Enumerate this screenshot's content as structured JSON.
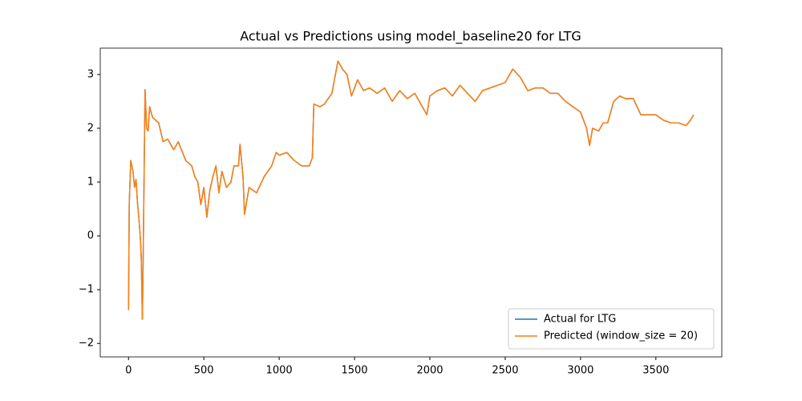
{
  "chart_data": {
    "type": "line",
    "title": "Actual vs Predictions using model_baseline20 for LTG",
    "x": [
      0,
      5,
      15,
      30,
      40,
      50,
      60,
      70,
      80,
      85,
      92,
      97,
      105,
      110,
      120,
      130,
      140,
      160,
      200,
      230,
      260,
      300,
      330,
      380,
      420,
      440,
      460,
      480,
      500,
      520,
      540,
      560,
      580,
      600,
      620,
      650,
      680,
      700,
      730,
      740,
      760,
      770,
      800,
      850,
      900,
      950,
      980,
      1000,
      1050,
      1100,
      1150,
      1200,
      1220,
      1230,
      1270,
      1300,
      1350,
      1390,
      1420,
      1450,
      1480,
      1520,
      1560,
      1600,
      1650,
      1700,
      1750,
      1800,
      1850,
      1900,
      1950,
      1980,
      2000,
      2050,
      2100,
      2150,
      2200,
      2250,
      2300,
      2350,
      2400,
      2450,
      2500,
      2550,
      2600,
      2650,
      2700,
      2750,
      2800,
      2850,
      2900,
      2950,
      3000,
      3040,
      3060,
      3080,
      3120,
      3150,
      3180,
      3220,
      3260,
      3300,
      3350,
      3400,
      3450,
      3500,
      3550,
      3600,
      3650,
      3700,
      3730,
      3750
    ],
    "series": [
      {
        "name": "Actual for LTG",
        "color": "#1f77b4",
        "values": [
          -1.38,
          0.6,
          1.4,
          1.2,
          0.9,
          1.05,
          0.6,
          0.3,
          -0.1,
          -0.45,
          -1.55,
          -0.5,
          1.5,
          2.72,
          2.0,
          1.95,
          2.4,
          2.2,
          2.1,
          1.75,
          1.8,
          1.6,
          1.75,
          1.4,
          1.3,
          1.1,
          1.0,
          0.58,
          0.9,
          0.35,
          0.85,
          1.1,
          1.3,
          0.8,
          1.2,
          0.9,
          1.0,
          1.3,
          1.3,
          1.7,
          1.1,
          0.4,
          0.9,
          0.8,
          1.1,
          1.3,
          1.55,
          1.5,
          1.55,
          1.4,
          1.3,
          1.3,
          1.45,
          2.45,
          2.4,
          2.45,
          2.65,
          3.25,
          3.1,
          3.0,
          2.6,
          2.9,
          2.7,
          2.75,
          2.65,
          2.75,
          2.5,
          2.7,
          2.55,
          2.65,
          2.4,
          2.25,
          2.6,
          2.7,
          2.75,
          2.6,
          2.8,
          2.65,
          2.5,
          2.7,
          2.75,
          2.8,
          2.85,
          3.1,
          2.95,
          2.7,
          2.75,
          2.75,
          2.65,
          2.65,
          2.5,
          2.4,
          2.3,
          2.0,
          1.68,
          2.0,
          1.95,
          2.1,
          2.1,
          2.5,
          2.6,
          2.55,
          2.55,
          2.25,
          2.25,
          2.25,
          2.15,
          2.1,
          2.1,
          2.05,
          2.15,
          2.25
        ]
      },
      {
        "name": "Predicted (window_size = 20)",
        "color": "#ff7f0e",
        "values": [
          -1.38,
          0.6,
          1.4,
          1.2,
          0.9,
          1.05,
          0.6,
          0.3,
          -0.1,
          -0.45,
          -1.55,
          -0.5,
          1.5,
          2.72,
          2.0,
          1.95,
          2.4,
          2.2,
          2.1,
          1.75,
          1.8,
          1.6,
          1.75,
          1.4,
          1.3,
          1.1,
          1.0,
          0.58,
          0.9,
          0.35,
          0.85,
          1.1,
          1.3,
          0.8,
          1.2,
          0.9,
          1.0,
          1.3,
          1.3,
          1.7,
          1.1,
          0.4,
          0.9,
          0.8,
          1.1,
          1.3,
          1.55,
          1.5,
          1.55,
          1.4,
          1.3,
          1.3,
          1.45,
          2.45,
          2.4,
          2.45,
          2.65,
          3.25,
          3.1,
          3.0,
          2.6,
          2.9,
          2.7,
          2.75,
          2.65,
          2.75,
          2.5,
          2.7,
          2.55,
          2.65,
          2.4,
          2.25,
          2.6,
          2.7,
          2.75,
          2.6,
          2.8,
          2.65,
          2.5,
          2.7,
          2.75,
          2.8,
          2.85,
          3.1,
          2.95,
          2.7,
          2.75,
          2.75,
          2.65,
          2.65,
          2.5,
          2.4,
          2.3,
          2.0,
          1.68,
          2.0,
          1.95,
          2.1,
          2.1,
          2.5,
          2.6,
          2.55,
          2.55,
          2.25,
          2.25,
          2.25,
          2.15,
          2.1,
          2.1,
          2.05,
          2.15,
          2.25
        ]
      }
    ],
    "xlim": [
      -187.5,
      3937.5
    ],
    "ylim": [
      -2.25,
      3.49
    ],
    "xticks": [
      0,
      500,
      1000,
      1500,
      2000,
      2500,
      3000,
      3500
    ],
    "yticks": [
      {
        "value": -2,
        "label": "−2"
      },
      {
        "value": -1,
        "label": "−1"
      },
      0,
      1,
      2,
      3
    ],
    "legend": "lower right"
  }
}
